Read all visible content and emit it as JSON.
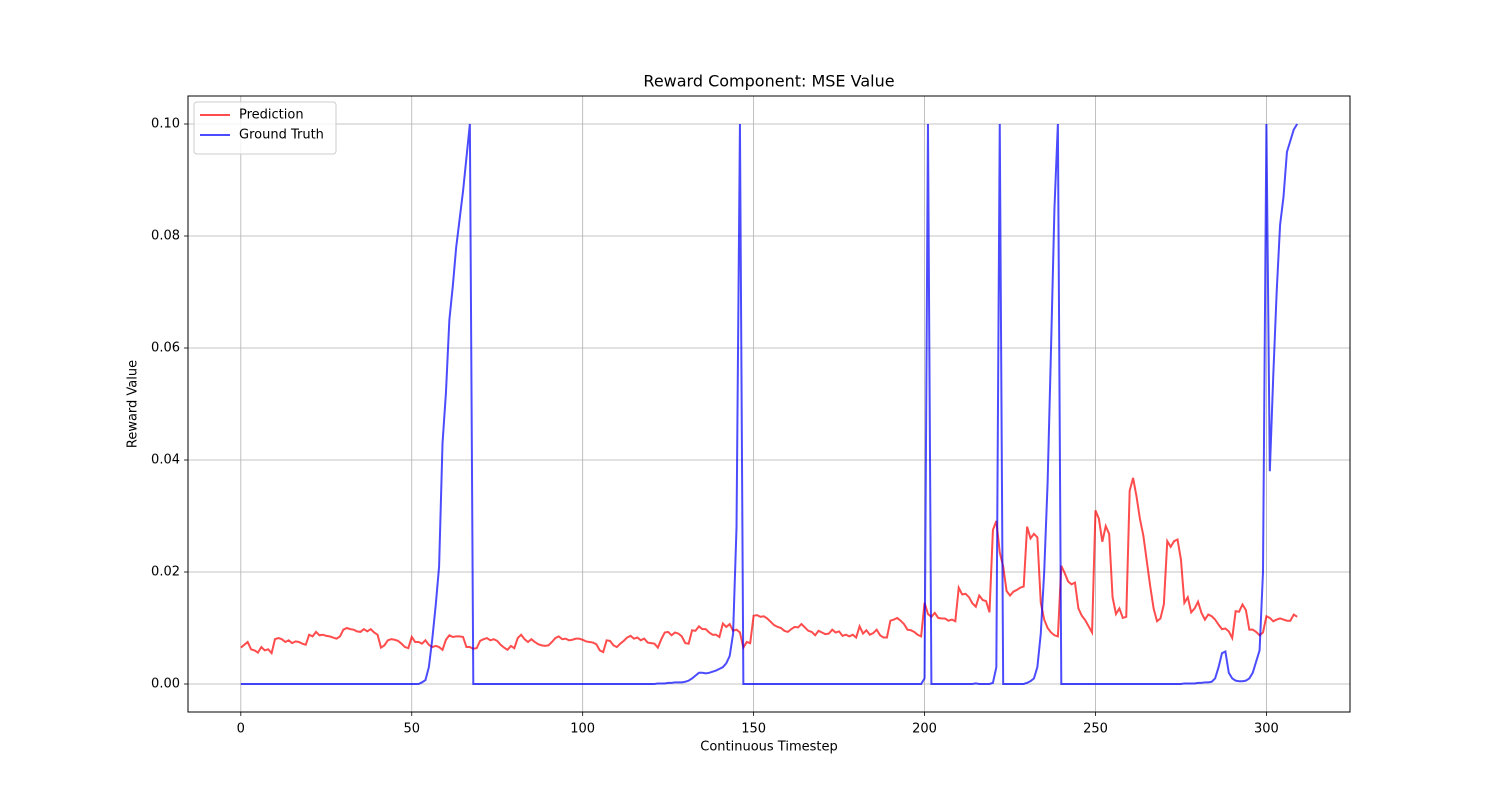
{
  "chart_data": {
    "type": "line",
    "title": "Reward Component: MSE Value",
    "x_label": "Continuous Timestep",
    "y_label": "Reward Value",
    "x": [
      0,
      1,
      2,
      3,
      4,
      5,
      6,
      7,
      8,
      9,
      10,
      11,
      12,
      13,
      14,
      15,
      16,
      17,
      18,
      19,
      20,
      21,
      22,
      23,
      24,
      25,
      26,
      27,
      28,
      29,
      30,
      31,
      32,
      33,
      34,
      35,
      36,
      37,
      38,
      39,
      40,
      41,
      42,
      43,
      44,
      45,
      46,
      47,
      48,
      49,
      50,
      51,
      52,
      53,
      54,
      55,
      56,
      57,
      58,
      59,
      60,
      61,
      62,
      63,
      64,
      65,
      66,
      67,
      68,
      69,
      70,
      71,
      72,
      73,
      74,
      75,
      76,
      77,
      78,
      79,
      80,
      81,
      82,
      83,
      84,
      85,
      86,
      87,
      88,
      89,
      90,
      91,
      92,
      93,
      94,
      95,
      96,
      97,
      98,
      99,
      100,
      101,
      102,
      103,
      104,
      105,
      106,
      107,
      108,
      109,
      110,
      111,
      112,
      113,
      114,
      115,
      116,
      117,
      118,
      119,
      120,
      121,
      122,
      123,
      124,
      125,
      126,
      127,
      128,
      129,
      130,
      131,
      132,
      133,
      134,
      135,
      136,
      137,
      138,
      139,
      140,
      141,
      142,
      143,
      144,
      145,
      146,
      147,
      148,
      149,
      150,
      151,
      152,
      153,
      154,
      155,
      156,
      157,
      158,
      159,
      160,
      161,
      162,
      163,
      164,
      165,
      166,
      167,
      168,
      169,
      170,
      171,
      172,
      173,
      174,
      175,
      176,
      177,
      178,
      179,
      180,
      181,
      182,
      183,
      184,
      185,
      186,
      187,
      188,
      189,
      190,
      191,
      192,
      193,
      194,
      195,
      196,
      197,
      198,
      199,
      200,
      201,
      202,
      203,
      204,
      205,
      206,
      207,
      208,
      209,
      210,
      211,
      212,
      213,
      214,
      215,
      216,
      217,
      218,
      219,
      220,
      221,
      222,
      223,
      224,
      225,
      226,
      227,
      228,
      229,
      230,
      231,
      232,
      233,
      234,
      235,
      236,
      237,
      238,
      239,
      240,
      241,
      242,
      243,
      244,
      245,
      246,
      247,
      248,
      249,
      250,
      251,
      252,
      253,
      254,
      255,
      256,
      257,
      258,
      259,
      260,
      261,
      262,
      263,
      264,
      265,
      266,
      267,
      268,
      269,
      270,
      271,
      272,
      273,
      274,
      275,
      276,
      277,
      278,
      279,
      280,
      281,
      282,
      283,
      284,
      285,
      286,
      287,
      288,
      289,
      290,
      291,
      292,
      293,
      294,
      295,
      296,
      297,
      298,
      299,
      300,
      301,
      302,
      303,
      304,
      305,
      306,
      307,
      308,
      309
    ],
    "series": [
      {
        "name": "Prediction",
        "color": "#ff0000",
        "values": [
          0.0065,
          0.007,
          0.0075,
          0.0062,
          0.006,
          0.0056,
          0.0066,
          0.006,
          0.0062,
          0.0055,
          0.008,
          0.0082,
          0.008,
          0.0075,
          0.0078,
          0.0073,
          0.0076,
          0.0075,
          0.0072,
          0.007,
          0.0088,
          0.0085,
          0.0093,
          0.0087,
          0.0088,
          0.0086,
          0.0085,
          0.0083,
          0.0081,
          0.0085,
          0.0097,
          0.01,
          0.0098,
          0.0097,
          0.0094,
          0.0093,
          0.0098,
          0.0094,
          0.0098,
          0.0092,
          0.0088,
          0.0065,
          0.0069,
          0.0078,
          0.008,
          0.0079,
          0.0077,
          0.0072,
          0.0066,
          0.0064,
          0.0084,
          0.0075,
          0.0075,
          0.0072,
          0.0078,
          0.007,
          0.0066,
          0.0068,
          0.0066,
          0.0061,
          0.0079,
          0.0087,
          0.0084,
          0.0085,
          0.0085,
          0.0084,
          0.0066,
          0.0066,
          0.0063,
          0.0064,
          0.0077,
          0.008,
          0.0082,
          0.0078,
          0.008,
          0.0077,
          0.007,
          0.0065,
          0.0061,
          0.0068,
          0.0064,
          0.0082,
          0.0088,
          0.008,
          0.0075,
          0.008,
          0.0075,
          0.0071,
          0.0069,
          0.0068,
          0.0069,
          0.0075,
          0.0082,
          0.0085,
          0.008,
          0.0081,
          0.0078,
          0.0079,
          0.0081,
          0.0081,
          0.0079,
          0.0076,
          0.0075,
          0.0074,
          0.0071,
          0.006,
          0.0057,
          0.0078,
          0.0077,
          0.0069,
          0.0066,
          0.0072,
          0.0077,
          0.0083,
          0.0086,
          0.0081,
          0.0083,
          0.0078,
          0.0081,
          0.0074,
          0.0073,
          0.0072,
          0.0065,
          0.008,
          0.0092,
          0.0093,
          0.0087,
          0.0092,
          0.009,
          0.0085,
          0.0073,
          0.0072,
          0.0096,
          0.0095,
          0.0103,
          0.0098,
          0.0098,
          0.0092,
          0.0088,
          0.0088,
          0.0084,
          0.0108,
          0.0102,
          0.0107,
          0.0095,
          0.0097,
          0.0092,
          0.0065,
          0.0075,
          0.0073,
          0.0122,
          0.0123,
          0.012,
          0.0121,
          0.0117,
          0.0111,
          0.0105,
          0.0102,
          0.01,
          0.0095,
          0.0093,
          0.0098,
          0.0102,
          0.0101,
          0.0107,
          0.0101,
          0.0095,
          0.0093,
          0.0087,
          0.0095,
          0.0092,
          0.0089,
          0.009,
          0.0097,
          0.0092,
          0.0094,
          0.0086,
          0.0088,
          0.0085,
          0.0088,
          0.0083,
          0.0103,
          0.009,
          0.0096,
          0.0088,
          0.0091,
          0.0097,
          0.0087,
          0.0083,
          0.0083,
          0.0113,
          0.0115,
          0.0118,
          0.0113,
          0.0107,
          0.0097,
          0.0096,
          0.0093,
          0.0088,
          0.0085,
          0.0145,
          0.0125,
          0.012,
          0.0127,
          0.0118,
          0.0117,
          0.0117,
          0.0113,
          0.0115,
          0.0112,
          0.0172,
          0.016,
          0.0161,
          0.0155,
          0.0144,
          0.0138,
          0.0158,
          0.015,
          0.0148,
          0.0128,
          0.0275,
          0.0291,
          0.0235,
          0.021,
          0.0166,
          0.0158,
          0.0165,
          0.0168,
          0.0172,
          0.0174,
          0.0281,
          0.026,
          0.0268,
          0.0262,
          0.0145,
          0.0115,
          0.01,
          0.0092,
          0.0087,
          0.0085,
          0.0211,
          0.0198,
          0.0183,
          0.0178,
          0.0181,
          0.0135,
          0.0122,
          0.0114,
          0.0103,
          0.0092,
          0.031,
          0.0295,
          0.0254,
          0.0282,
          0.0268,
          0.0155,
          0.0125,
          0.0135,
          0.0118,
          0.012,
          0.0345,
          0.0368,
          0.0335,
          0.0295,
          0.0265,
          0.022,
          0.0175,
          0.0135,
          0.0112,
          0.0117,
          0.0142,
          0.0255,
          0.0245,
          0.0255,
          0.0258,
          0.0222,
          0.0145,
          0.0155,
          0.0128,
          0.0135,
          0.0147,
          0.0127,
          0.0115,
          0.0124,
          0.0121,
          0.0115,
          0.0106,
          0.0098,
          0.0099,
          0.0094,
          0.0082,
          0.013,
          0.0129,
          0.0142,
          0.0132,
          0.0097,
          0.0097,
          0.0093,
          0.0087,
          0.0092,
          0.0121,
          0.0118,
          0.0112,
          0.0115,
          0.0117,
          0.0115,
          0.0113,
          0.0113,
          0.0124,
          0.012
        ]
      },
      {
        "name": "Ground Truth",
        "color": "#0000ff",
        "values": [
          0,
          0,
          0,
          0,
          0,
          0,
          0,
          0,
          0,
          0,
          0,
          0,
          0,
          0,
          0,
          0,
          0,
          0,
          0,
          0,
          0,
          0,
          0,
          0,
          0,
          0,
          0,
          0,
          0,
          0,
          0,
          0,
          0,
          0,
          0,
          0,
          0,
          0,
          0,
          0,
          0,
          0,
          0,
          0,
          0,
          0,
          0,
          0,
          0,
          0,
          0,
          0,
          0,
          0.0003,
          0.0007,
          0.003,
          0.008,
          0.014,
          0.021,
          0.043,
          0.052,
          0.065,
          0.071,
          0.078,
          0.083,
          0.088,
          0.094,
          0.1,
          0,
          0,
          0,
          0,
          0,
          0,
          0,
          0,
          0,
          0,
          0,
          0,
          0,
          0,
          0,
          0,
          0,
          0,
          0,
          0,
          0,
          0,
          0,
          0,
          0,
          0,
          0,
          0,
          0,
          0,
          0,
          0,
          0,
          0,
          0,
          0,
          0,
          0,
          0,
          0,
          0,
          0,
          0,
          0,
          0,
          0,
          0,
          0,
          0,
          0,
          0,
          0,
          0,
          0,
          0.0001,
          0.0001,
          0.0001,
          0.0002,
          0.0002,
          0.0003,
          0.0003,
          0.0003,
          0.0004,
          0.0006,
          0.001,
          0.0015,
          0.002,
          0.002,
          0.0019,
          0.002,
          0.0022,
          0.0024,
          0.0027,
          0.003,
          0.0037,
          0.005,
          0.009,
          0.028,
          0.1,
          0,
          0,
          0,
          0,
          0,
          0,
          0,
          0,
          0,
          0,
          0,
          0,
          0,
          0,
          0,
          0,
          0,
          0,
          0,
          0,
          0,
          0,
          0,
          0,
          0,
          0,
          0,
          0,
          0,
          0,
          0,
          0,
          0,
          0,
          0,
          0,
          0,
          0,
          0,
          0,
          0,
          0,
          0,
          0,
          0,
          0,
          0,
          0,
          0,
          0,
          0,
          0,
          0,
          0.001,
          0.1,
          0,
          0,
          0,
          0,
          0,
          0,
          0,
          0,
          0,
          0,
          0,
          0,
          0,
          0.0001,
          0,
          0,
          0,
          0,
          0.0002,
          0.003,
          0.1,
          0,
          0,
          0,
          0,
          0,
          0,
          0,
          0.0002,
          0.0005,
          0.001,
          0.003,
          0.009,
          0.02,
          0.036,
          0.06,
          0.085,
          0.1,
          0,
          0,
          0,
          0,
          0,
          0,
          0,
          0,
          0,
          0,
          0,
          0,
          0,
          0,
          0,
          0,
          0,
          0,
          0,
          0,
          0,
          0,
          0,
          0,
          0,
          0,
          0,
          0,
          0,
          0,
          0,
          0,
          0,
          0,
          0,
          0,
          0.0001,
          0.0001,
          0.0001,
          0.0001,
          0.0002,
          0.0002,
          0.0003,
          0.0003,
          0.0004,
          0.001,
          0.003,
          0.0055,
          0.0058,
          0.002,
          0.001,
          0.0006,
          0.0005,
          0.0005,
          0.0006,
          0.001,
          0.002,
          0.004,
          0.006,
          0.02,
          0.1,
          0.038,
          0.055,
          0.07,
          0.082,
          0.087,
          0.095,
          0.097,
          0.099,
          0.1
        ]
      }
    ],
    "xlim": [
      -15.45,
      324.45
    ],
    "xticks": [
      0,
      50,
      100,
      150,
      200,
      250,
      300
    ],
    "ylim": [
      -0.005,
      0.105
    ],
    "yticks": [
      {
        "value": 0,
        "label": "0.00"
      },
      {
        "value": 0.02,
        "label": "0.02"
      },
      {
        "value": 0.04,
        "label": "0.04"
      },
      {
        "value": 0.06,
        "label": "0.06"
      },
      {
        "value": 0.08,
        "label": "0.08"
      },
      {
        "value": 0.1,
        "label": "0.10"
      }
    ],
    "grid": true,
    "legend": "upper-left"
  }
}
